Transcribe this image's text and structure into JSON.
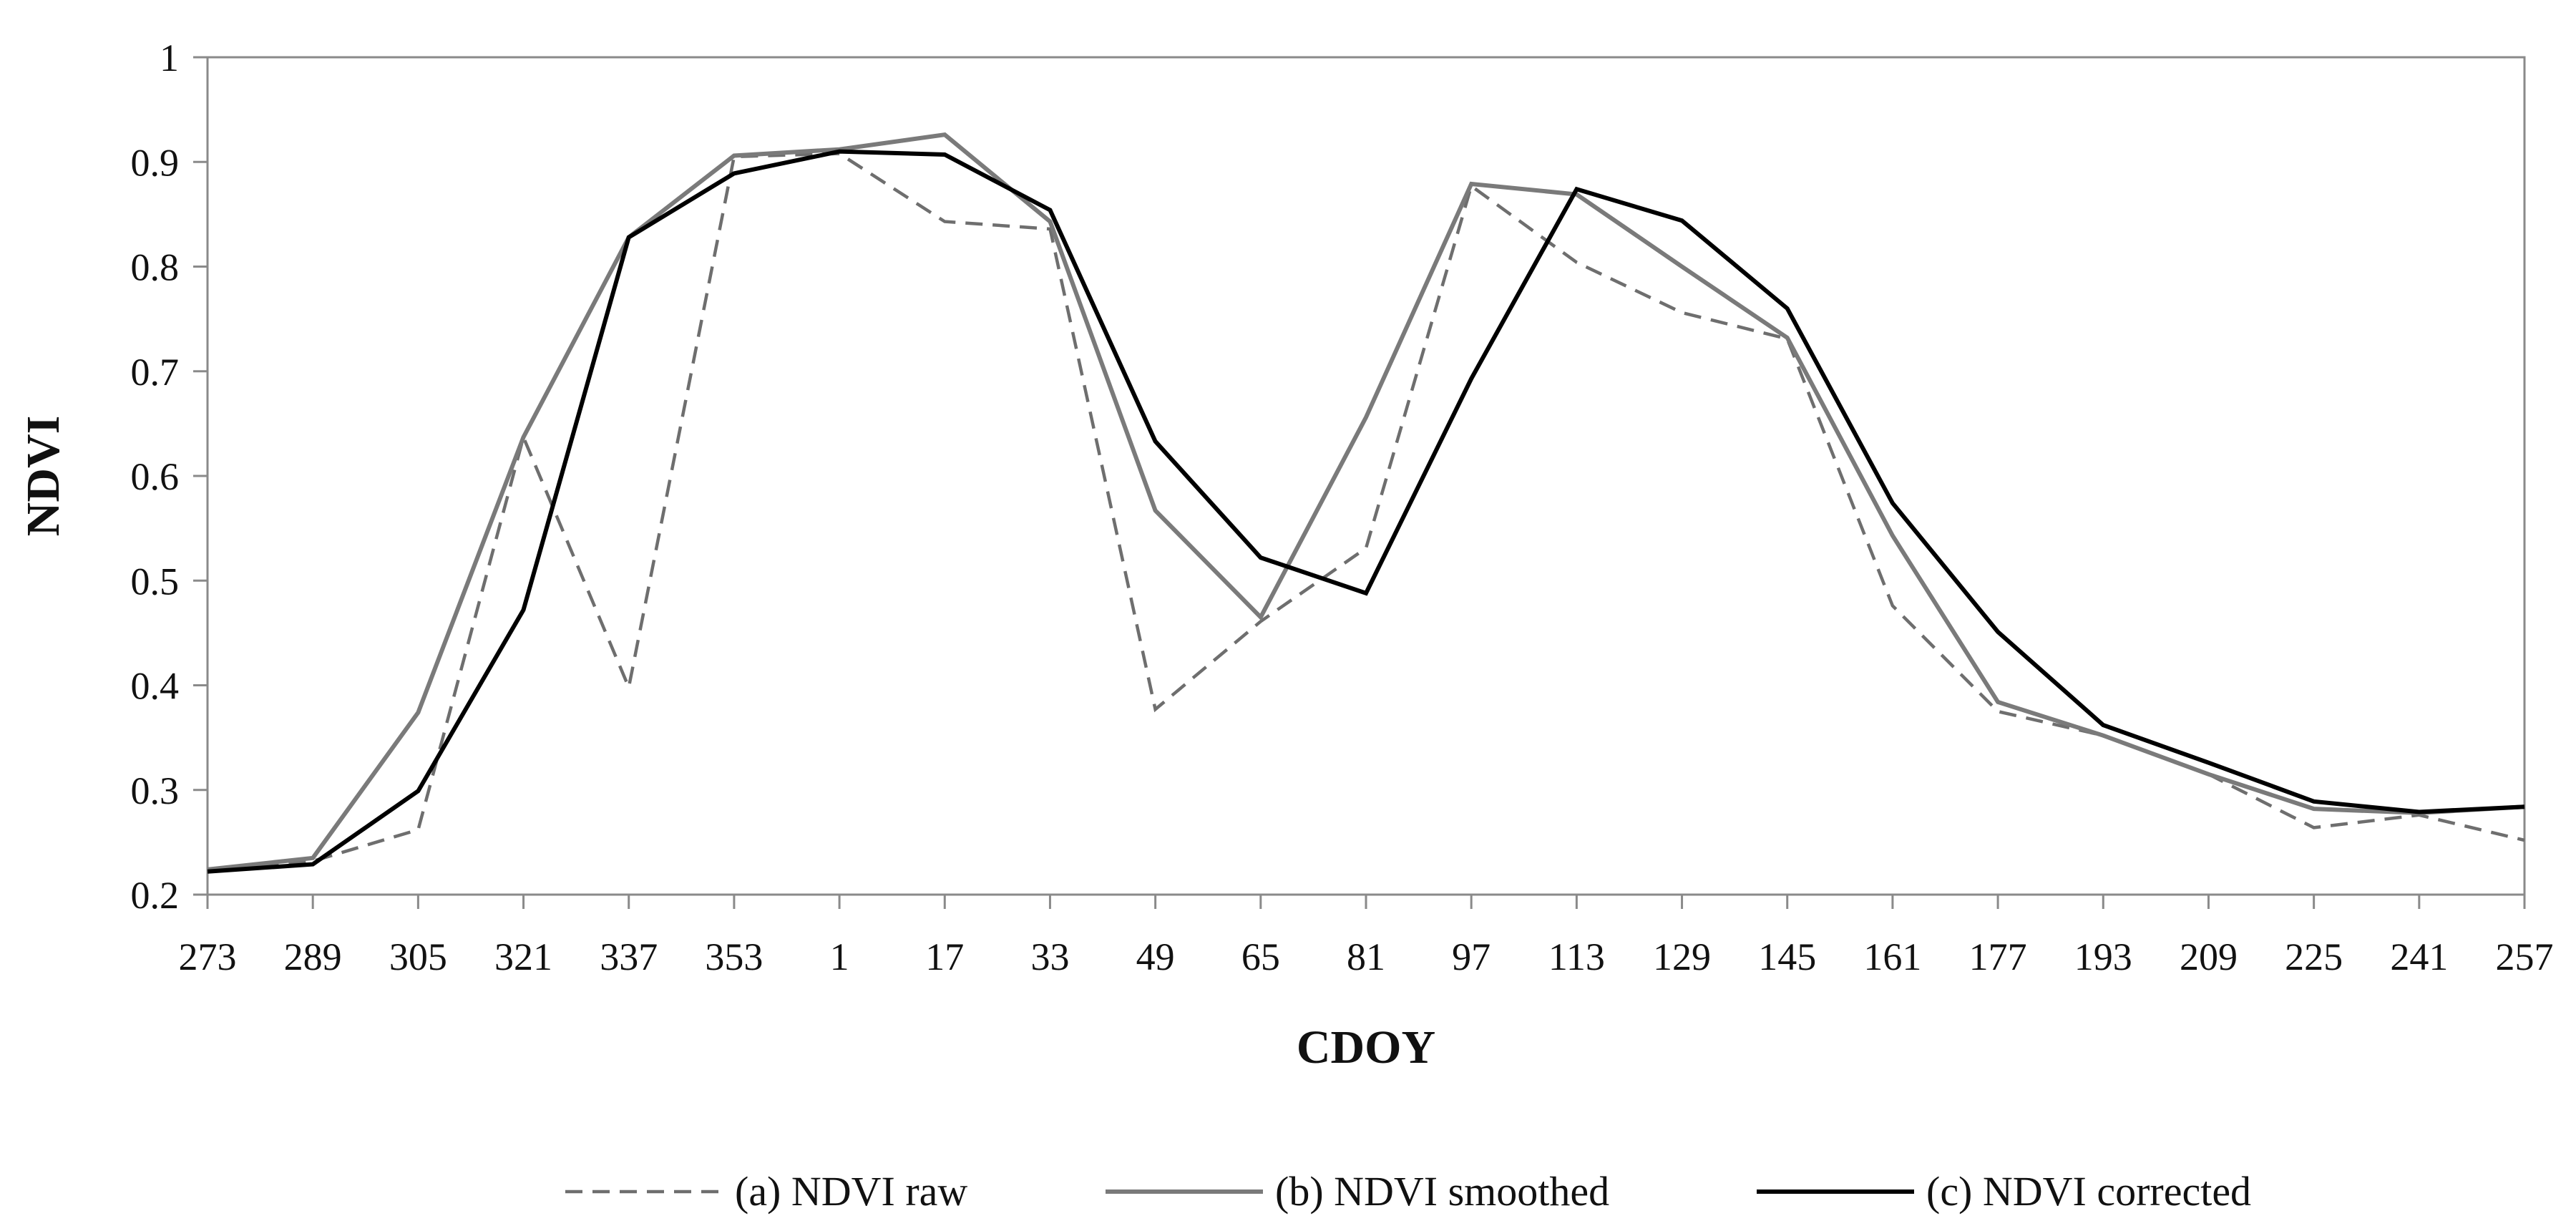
{
  "chart_data": {
    "type": "line",
    "title": "",
    "xlabel": "CDOY",
    "ylabel": "NDVI",
    "ylim": [
      0.2,
      1.0
    ],
    "yticks": [
      0.2,
      0.3,
      0.4,
      0.5,
      0.6,
      0.7,
      0.8,
      0.9,
      1
    ],
    "ytick_labels": [
      "0.2",
      "0.3",
      "0.4",
      "0.5",
      "0.6",
      "0.7",
      "0.8",
      "0.9",
      "1"
    ],
    "grid": false,
    "legend_position": "bottom",
    "categories": [
      "273",
      "289",
      "305",
      "321",
      "337",
      "353",
      "1",
      "17",
      "33",
      "49",
      "65",
      "81",
      "97",
      "113",
      "129",
      "145",
      "161",
      "177",
      "193",
      "209",
      "225",
      "241",
      "257"
    ],
    "series": [
      {
        "name": "(a) NDVI raw",
        "style": "dashed",
        "color": "#6e6e6e",
        "values": [
          0.222,
          0.232,
          0.262,
          0.637,
          0.398,
          0.905,
          0.908,
          0.843,
          0.836,
          0.377,
          0.461,
          0.531,
          0.877,
          0.804,
          0.756,
          0.731,
          0.476,
          0.375,
          0.352,
          0.315,
          0.264,
          0.276,
          0.252
        ]
      },
      {
        "name": "(b) NDVI smoothed",
        "style": "solid",
        "color": "#7a7a7a",
        "values": [
          0.224,
          0.235,
          0.374,
          0.637,
          0.828,
          0.906,
          0.912,
          0.926,
          0.843,
          0.567,
          0.465,
          0.656,
          0.879,
          0.869,
          0.8,
          0.732,
          0.543,
          0.384,
          0.352,
          0.315,
          0.282,
          0.278,
          0.284
        ]
      },
      {
        "name": "(c) NDVI corrected",
        "style": "solid",
        "color": "#000000",
        "values": [
          0.222,
          0.229,
          0.299,
          0.472,
          0.828,
          0.889,
          0.91,
          0.907,
          0.854,
          0.633,
          0.522,
          0.488,
          0.693,
          0.874,
          0.844,
          0.76,
          0.574,
          0.451,
          0.362,
          0.326,
          0.289,
          0.279,
          0.284
        ]
      }
    ]
  }
}
